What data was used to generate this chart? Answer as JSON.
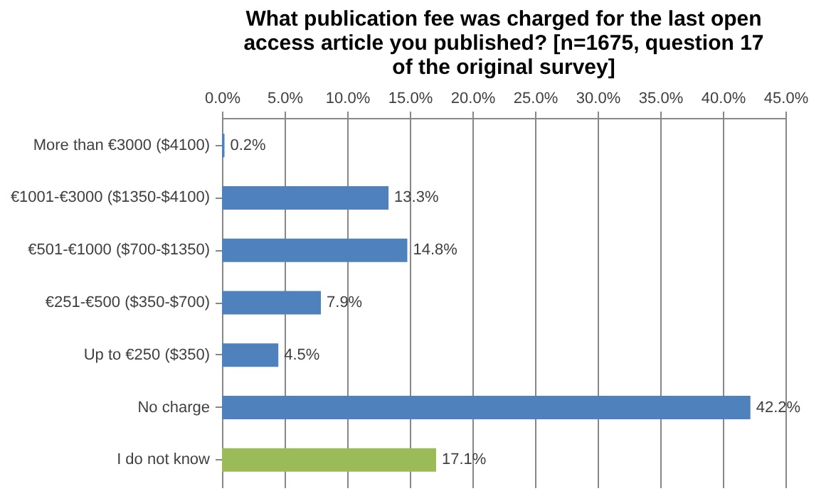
{
  "chart_data": {
    "type": "bar",
    "orientation": "horizontal",
    "title": "What publication fee was charged for the last open access article you published? [n=1675, question 17 of the original survey]",
    "categories": [
      "More than €3000 ($4100)",
      "€1001-€3000 ($1350-$4100)",
      "€501-€1000 ($700-$1350)",
      "€251-€500 ($350-$700)",
      "Up to €250 ($350)",
      "No charge",
      "I do not know"
    ],
    "values": [
      0.2,
      13.3,
      14.8,
      7.9,
      4.5,
      42.2,
      17.1
    ],
    "value_labels": [
      "0.2%",
      "13.3%",
      "14.8%",
      "7.9%",
      "4.5%",
      "42.2%",
      "17.1%"
    ],
    "colors": [
      "#4f81bd",
      "#4f81bd",
      "#4f81bd",
      "#4f81bd",
      "#4f81bd",
      "#4f81bd",
      "#9bbb59"
    ],
    "xlim": [
      0,
      45
    ],
    "xticks": [
      {
        "value": 0,
        "label": "0.0%"
      },
      {
        "value": 5,
        "label": "5.0%"
      },
      {
        "value": 10,
        "label": "10.0%"
      },
      {
        "value": 15,
        "label": "15.0%"
      },
      {
        "value": 20,
        "label": "20.0%"
      },
      {
        "value": 25,
        "label": "25.0%"
      },
      {
        "value": 30,
        "label": "30.0%"
      },
      {
        "value": 35,
        "label": "35.0%"
      },
      {
        "value": 40,
        "label": "40.0%"
      },
      {
        "value": 45,
        "label": "45.0%"
      }
    ],
    "grid": "x"
  }
}
